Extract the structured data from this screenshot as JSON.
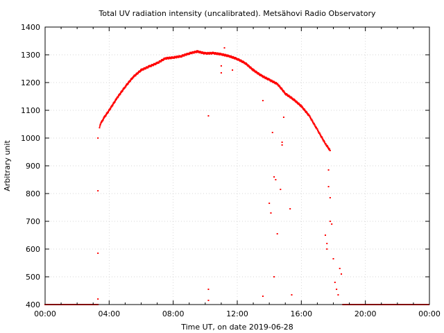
{
  "chart_data": {
    "type": "scatter",
    "title": "Total UV radiation intensity (uncalibrated). Metsähovi Radio Observatory",
    "xlabel": "Time UT, on date 2019-06-28",
    "ylabel": "Arbitrary unit",
    "xlim_hours": [
      0,
      24
    ],
    "ylim": [
      400,
      1400
    ],
    "x_tick_labels": [
      "00:00",
      "04:00",
      "08:00",
      "12:00",
      "16:00",
      "20:00",
      "00:00"
    ],
    "y_tick_labels": [
      "400",
      "500",
      "600",
      "700",
      "800",
      "900",
      "1000",
      "1100",
      "1200",
      "1300",
      "1400"
    ],
    "grid": true,
    "marker_color": "#ff0000",
    "series": [
      {
        "main_curve_hours": [
          3.4,
          3.5,
          3.7,
          4.0,
          4.5,
          5.0,
          5.5,
          6.0,
          6.5,
          7.0,
          7.5,
          8.0,
          8.5,
          9.0,
          9.5,
          10.0,
          10.5,
          11.0,
          11.5,
          12.0,
          12.5,
          13.0,
          13.5,
          14.0,
          14.5,
          14.8,
          15.0,
          15.5,
          16.0,
          16.5,
          17.0,
          17.5,
          17.8
        ],
        "main_curve_values": [
          1040,
          1055,
          1075,
          1100,
          1145,
          1185,
          1220,
          1245,
          1258,
          1270,
          1287,
          1290,
          1295,
          1305,
          1312,
          1305,
          1306,
          1302,
          1295,
          1285,
          1270,
          1245,
          1225,
          1210,
          1195,
          1175,
          1160,
          1140,
          1115,
          1080,
          1030,
          980,
          955
        ],
        "scatter_hours": [
          3.3,
          3.3,
          3.3,
          3.3,
          10.2,
          10.2,
          10.2,
          11.0,
          11.0,
          11.2,
          11.7,
          13.6,
          13.6,
          14.0,
          14.1,
          14.2,
          14.3,
          14.3,
          14.4,
          14.5,
          14.7,
          14.8,
          14.8,
          14.9,
          15.3,
          15.4,
          17.5,
          17.6,
          17.6,
          17.7,
          17.7,
          17.8,
          17.8,
          17.9,
          18.0,
          18.1,
          18.2,
          18.3,
          18.4,
          18.5
        ],
        "scatter_values": [
          1000,
          810,
          585,
          420,
          1080,
          455,
          415,
          1260,
          1235,
          1325,
          1245,
          1135,
          430,
          765,
          730,
          1020,
          860,
          500,
          850,
          655,
          815,
          985,
          975,
          1075,
          745,
          435,
          650,
          620,
          600,
          885,
          825,
          785,
          700,
          690,
          565,
          480,
          455,
          435,
          530,
          510
        ],
        "baseline_value": 400,
        "baseline_ranges_hours": [
          [
            0,
            3.3
          ],
          [
            18.6,
            24
          ]
        ]
      }
    ]
  }
}
